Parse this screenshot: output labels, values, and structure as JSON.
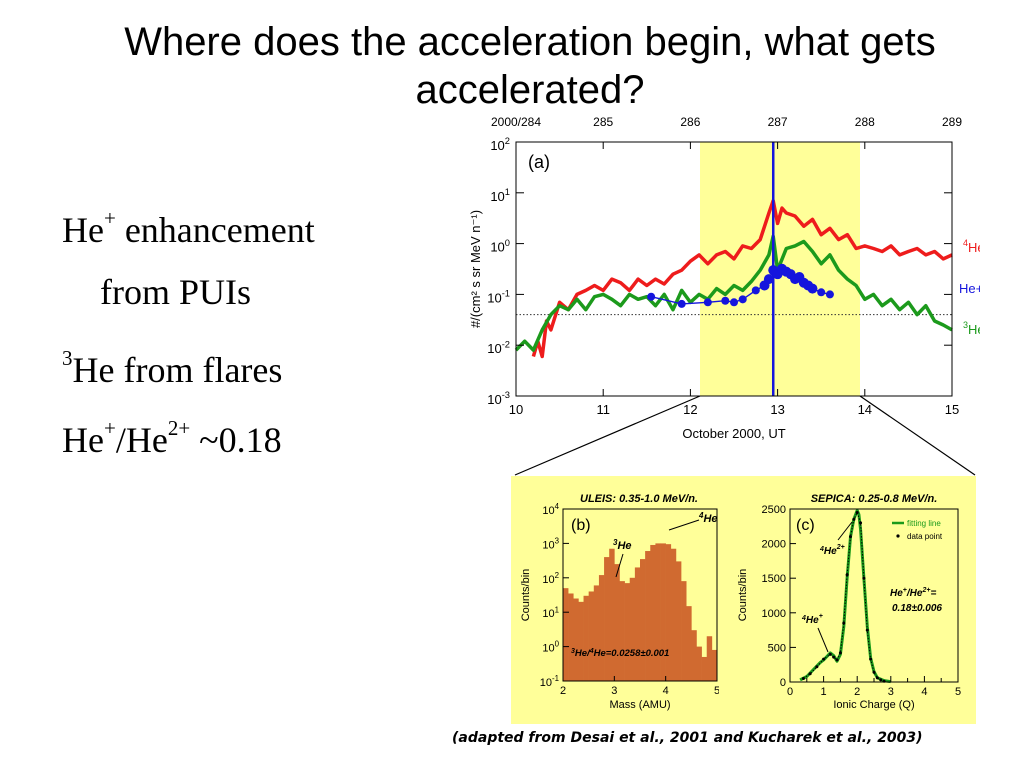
{
  "slide": {
    "title_line1": "Where does the acceleration begin, what gets",
    "title_line2": "accelerated?",
    "bullets": {
      "b1_he": "He",
      "b1_sup": "+",
      "b1_rest": " enhancement",
      "b2": "from PUIs",
      "b3_sup": "3",
      "b3_rest": "He from flares",
      "b4_he": "He",
      "b4_sup1": "+",
      "b4_mid": "/He",
      "b4_sup2": "2+",
      "b4_rest": " ~0.18"
    },
    "caption": "(adapted from Desai et al., 2001 and Kucharek et al., 2003)"
  },
  "chart_data": [
    {
      "type": "line",
      "panel_label": "(a)",
      "xlabel": "October 2000, UT",
      "ylabel": "#/(cm² s sr MeV n⁻¹)",
      "x_ticks": [
        "10",
        "11",
        "12",
        "13",
        "14",
        "15"
      ],
      "top_ticks": [
        "2000/284",
        "285",
        "286",
        "287",
        "288",
        "289"
      ],
      "y_ticks": [
        "10^2",
        "10^1",
        "10^0",
        "10^-1",
        "10^-2",
        "10^-3"
      ],
      "xlim": [
        10,
        15
      ],
      "ylim_log10": [
        -3,
        2
      ],
      "highlight_range": [
        12.1,
        13.9
      ],
      "vertical_line_x": 12.95,
      "dotted_level": 0.04,
      "series": [
        {
          "name": "4He",
          "label_prefix": "4",
          "label_main": "He",
          "color": "#ee1c1c",
          "x": [
            10.2,
            10.25,
            10.3,
            10.35,
            10.4,
            10.5,
            10.6,
            10.7,
            10.8,
            10.9,
            11.0,
            11.1,
            11.2,
            11.3,
            11.4,
            11.5,
            11.6,
            11.7,
            11.8,
            11.9,
            12.0,
            12.1,
            12.2,
            12.3,
            12.4,
            12.5,
            12.6,
            12.7,
            12.8,
            12.9,
            12.95,
            13.0,
            13.05,
            13.1,
            13.2,
            13.3,
            13.4,
            13.5,
            13.6,
            13.7,
            13.8,
            13.9,
            14.0,
            14.1,
            14.2,
            14.3,
            14.4,
            14.5,
            14.6,
            14.7,
            14.8,
            14.9,
            15.0
          ],
          "y": [
            0.006,
            0.012,
            0.006,
            0.03,
            0.02,
            0.07,
            0.05,
            0.1,
            0.12,
            0.15,
            0.12,
            0.2,
            0.17,
            0.12,
            0.2,
            0.15,
            0.2,
            0.16,
            0.25,
            0.3,
            0.45,
            0.6,
            0.4,
            0.6,
            0.7,
            0.5,
            0.9,
            0.8,
            1.2,
            4,
            7,
            2.5,
            5,
            4,
            3.5,
            2.2,
            3,
            1.5,
            2,
            1.2,
            1.5,
            0.8,
            0.9,
            0.8,
            0.7,
            0.9,
            0.6,
            0.7,
            0.8,
            0.6,
            0.7,
            0.5,
            0.6
          ]
        },
        {
          "name": "3He",
          "label_prefix": "3",
          "label_main": "He",
          "color": "#1c9a1c",
          "x": [
            10.0,
            10.1,
            10.2,
            10.3,
            10.4,
            10.5,
            10.6,
            10.7,
            10.8,
            10.9,
            11.0,
            11.1,
            11.2,
            11.3,
            11.4,
            11.5,
            11.6,
            11.7,
            11.8,
            11.9,
            12.0,
            12.1,
            12.2,
            12.3,
            12.4,
            12.5,
            12.6,
            12.7,
            12.8,
            12.9,
            12.95,
            13.0,
            13.1,
            13.2,
            13.3,
            13.4,
            13.5,
            13.6,
            13.7,
            13.8,
            13.9,
            14.0,
            14.1,
            14.2,
            14.3,
            14.4,
            14.5,
            14.6,
            14.7,
            14.8,
            14.9,
            15.0
          ],
          "y": [
            0.008,
            0.012,
            0.008,
            0.02,
            0.04,
            0.06,
            0.05,
            0.08,
            0.05,
            0.09,
            0.1,
            0.08,
            0.06,
            0.1,
            0.08,
            0.09,
            0.06,
            0.1,
            0.05,
            0.12,
            0.07,
            0.1,
            0.08,
            0.13,
            0.1,
            0.15,
            0.12,
            0.18,
            0.3,
            0.6,
            1.4,
            0.3,
            0.8,
            0.9,
            1.1,
            0.7,
            0.4,
            0.6,
            0.3,
            0.2,
            0.15,
            0.08,
            0.1,
            0.06,
            0.08,
            0.05,
            0.07,
            0.04,
            0.06,
            0.03,
            0.025,
            0.02
          ]
        },
        {
          "name": "He+/He2+",
          "color": "#1515dd",
          "x": [
            11.55,
            11.9,
            12.2,
            12.4,
            12.5,
            12.6,
            12.75,
            12.85,
            12.9,
            12.95,
            13.0,
            13.05,
            13.1,
            13.15,
            13.2,
            13.25,
            13.3,
            13.35,
            13.4,
            13.5,
            13.6
          ],
          "y": [
            0.09,
            0.065,
            0.07,
            0.075,
            0.07,
            0.08,
            0.12,
            0.15,
            0.2,
            0.3,
            0.25,
            0.32,
            0.28,
            0.25,
            0.2,
            0.22,
            0.17,
            0.15,
            0.13,
            0.11,
            0.1
          ]
        }
      ]
    },
    {
      "type": "bar",
      "panel_label": "(b)",
      "title": "ULEIS: 0.35-1.0 MeV/n.",
      "xlabel": "Mass (AMU)",
      "ylabel": "Counts/bin",
      "x_ticks": [
        "2",
        "3",
        "4",
        "5"
      ],
      "y_ticks": [
        "10^4",
        "10^3",
        "10^2",
        "10^1",
        "10^0",
        "10^-1"
      ],
      "xlim": [
        2,
        5
      ],
      "ylim_log10": [
        -1,
        4
      ],
      "color": "#d06a30",
      "annotations": {
        "peak1_prefix": "3",
        "peak1_main": "He",
        "peak2_prefix": "4",
        "peak2_main": "He"
      },
      "ratio_text_parts": [
        "3",
        "He/",
        "4",
        "He=0.0258±0.001"
      ],
      "x": [
        2.0,
        2.1,
        2.2,
        2.3,
        2.4,
        2.5,
        2.6,
        2.7,
        2.8,
        2.9,
        3.0,
        3.1,
        3.2,
        3.3,
        3.4,
        3.5,
        3.6,
        3.7,
        3.8,
        3.9,
        4.0,
        4.1,
        4.2,
        4.3,
        4.4,
        4.5,
        4.6,
        4.7,
        4.8,
        4.9
      ],
      "values": [
        50,
        35,
        25,
        20,
        30,
        40,
        60,
        120,
        400,
        700,
        250,
        80,
        70,
        100,
        200,
        350,
        600,
        900,
        1000,
        1000,
        950,
        700,
        300,
        80,
        15,
        3,
        1,
        0.5,
        2,
        0.8
      ]
    },
    {
      "type": "line",
      "panel_label": "(c)",
      "title": "SEPICA: 0.25-0.8 MeV/n.",
      "xlabel": "Ionic Charge (Q)",
      "ylabel": "Counts/bin",
      "x_ticks": [
        "0",
        "0.5",
        "1",
        "1.5",
        "2",
        "2.5",
        "3",
        "3.5",
        "4",
        "4.5",
        "5"
      ],
      "y_ticks": [
        "2500",
        "2000",
        "1500",
        "1000",
        "500",
        "0"
      ],
      "xlim": [
        0,
        5
      ],
      "ylim": [
        0,
        2500
      ],
      "legend": [
        "fitting line",
        "data point"
      ],
      "annotations": {
        "peak2_prefix": "4",
        "peak2_main": "He",
        "peak2_sup": "2+",
        "peak1_prefix": "4",
        "peak1_main": "He",
        "peak1_sup": "+"
      },
      "ratio_parts": [
        "He",
        "+",
        "/He",
        "2+",
        "="
      ],
      "ratio_value": "0.18±0.006",
      "series": [
        {
          "name": "fitting line",
          "color": "#1a9a1a",
          "x": [
            0.3,
            0.5,
            0.7,
            0.9,
            1.0,
            1.1,
            1.2,
            1.3,
            1.4,
            1.5,
            1.6,
            1.7,
            1.8,
            1.9,
            2.0,
            2.05,
            2.1,
            2.2,
            2.3,
            2.4,
            2.5,
            2.6,
            2.8,
            3.0
          ],
          "y": [
            30,
            80,
            180,
            280,
            320,
            370,
            420,
            380,
            300,
            400,
            800,
            1500,
            2100,
            2350,
            2480,
            2420,
            2200,
            1500,
            800,
            350,
            150,
            60,
            20,
            5
          ]
        },
        {
          "name": "data point",
          "color": "#000000",
          "x": [
            0.4,
            0.6,
            0.8,
            1.0,
            1.2,
            1.3,
            1.4,
            1.5,
            1.6,
            1.7,
            1.8,
            1.9,
            2.0,
            2.1,
            2.2,
            2.3,
            2.4,
            2.5,
            2.6,
            2.7,
            2.8
          ],
          "y": [
            50,
            120,
            220,
            330,
            400,
            360,
            320,
            420,
            850,
            1550,
            2100,
            2350,
            2450,
            2300,
            1500,
            750,
            330,
            140,
            60,
            30,
            10
          ]
        }
      ]
    }
  ]
}
